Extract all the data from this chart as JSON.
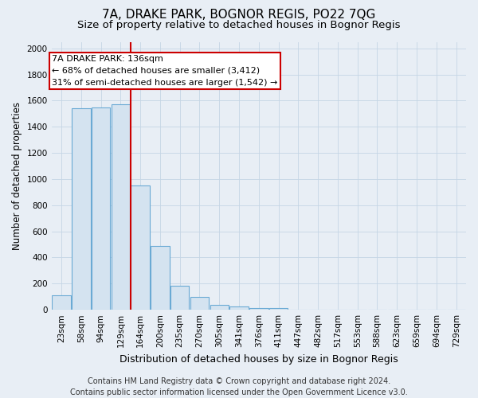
{
  "title1": "7A, DRAKE PARK, BOGNOR REGIS, PO22 7QG",
  "title2": "Size of property relative to detached houses in Bognor Regis",
  "xlabel": "Distribution of detached houses by size in Bognor Regis",
  "ylabel": "Number of detached properties",
  "footer1": "Contains HM Land Registry data © Crown copyright and database right 2024.",
  "footer2": "Contains public sector information licensed under the Open Government Licence v3.0.",
  "categories": [
    "23sqm",
    "58sqm",
    "94sqm",
    "129sqm",
    "164sqm",
    "200sqm",
    "235sqm",
    "270sqm",
    "305sqm",
    "341sqm",
    "376sqm",
    "411sqm",
    "447sqm",
    "482sqm",
    "517sqm",
    "553sqm",
    "588sqm",
    "623sqm",
    "659sqm",
    "694sqm",
    "729sqm"
  ],
  "values": [
    110,
    1540,
    1550,
    1570,
    950,
    490,
    185,
    100,
    40,
    25,
    15,
    15,
    0,
    0,
    0,
    0,
    0,
    0,
    0,
    0,
    0
  ],
  "bar_color": "#d4e3f0",
  "bar_edge_color": "#6aaad4",
  "red_line_x": 3.5,
  "annotation_line1": "7A DRAKE PARK: 136sqm",
  "annotation_line2": "← 68% of detached houses are smaller (3,412)",
  "annotation_line3": "31% of semi-detached houses are larger (1,542) →",
  "annotation_edge_color": "#cc0000",
  "ylim": [
    0,
    2050
  ],
  "yticks": [
    0,
    200,
    400,
    600,
    800,
    1000,
    1200,
    1400,
    1600,
    1800,
    2000
  ],
  "bg_color": "#e8eef5",
  "plot_bg_color": "#e8eef5",
  "grid_color": "#c5d5e5",
  "title1_fontsize": 11,
  "title2_fontsize": 9.5,
  "xlabel_fontsize": 9,
  "ylabel_fontsize": 8.5,
  "tick_fontsize": 7.5,
  "annotation_fontsize": 8,
  "footer_fontsize": 7
}
